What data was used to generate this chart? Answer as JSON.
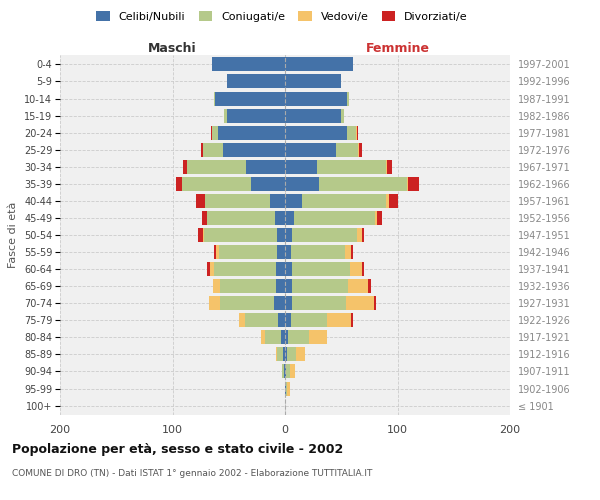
{
  "age_groups": [
    "100+",
    "95-99",
    "90-94",
    "85-89",
    "80-84",
    "75-79",
    "70-74",
    "65-69",
    "60-64",
    "55-59",
    "50-54",
    "45-49",
    "40-44",
    "35-39",
    "30-34",
    "25-29",
    "20-24",
    "15-19",
    "10-14",
    "5-9",
    "0-4"
  ],
  "birth_years": [
    "≤ 1901",
    "1902-1906",
    "1907-1911",
    "1912-1916",
    "1917-1921",
    "1922-1926",
    "1927-1931",
    "1932-1936",
    "1937-1941",
    "1942-1946",
    "1947-1951",
    "1952-1956",
    "1957-1961",
    "1962-1966",
    "1967-1971",
    "1972-1976",
    "1977-1981",
    "1982-1986",
    "1987-1991",
    "1992-1996",
    "1997-2001"
  ],
  "males": {
    "celibe": [
      0,
      0,
      1,
      2,
      4,
      6,
      10,
      8,
      8,
      7,
      7,
      9,
      13,
      30,
      35,
      55,
      60,
      52,
      62,
      52,
      65
    ],
    "coniugato": [
      0,
      0,
      2,
      5,
      14,
      30,
      48,
      50,
      55,
      52,
      65,
      60,
      58,
      62,
      52,
      18,
      5,
      2,
      1,
      0,
      0
    ],
    "vedovo": [
      0,
      0,
      0,
      1,
      3,
      5,
      10,
      6,
      4,
      2,
      1,
      0,
      0,
      0,
      0,
      0,
      0,
      0,
      0,
      0,
      0
    ],
    "divorziato": [
      0,
      0,
      0,
      0,
      0,
      0,
      0,
      0,
      2,
      2,
      4,
      5,
      8,
      5,
      4,
      2,
      1,
      0,
      0,
      0,
      0
    ]
  },
  "females": {
    "nubile": [
      0,
      1,
      1,
      2,
      3,
      5,
      6,
      6,
      6,
      5,
      6,
      8,
      15,
      30,
      28,
      45,
      55,
      50,
      55,
      50,
      60
    ],
    "coniugata": [
      0,
      1,
      3,
      8,
      18,
      32,
      48,
      50,
      52,
      48,
      58,
      72,
      75,
      78,
      62,
      20,
      8,
      2,
      2,
      0,
      0
    ],
    "vedova": [
      0,
      2,
      5,
      8,
      16,
      22,
      25,
      18,
      10,
      6,
      4,
      2,
      2,
      1,
      1,
      1,
      1,
      0,
      0,
      0,
      0
    ],
    "divorziata": [
      0,
      0,
      0,
      0,
      0,
      1,
      2,
      2,
      2,
      1,
      2,
      4,
      8,
      10,
      4,
      2,
      1,
      0,
      0,
      0,
      0
    ]
  },
  "color_celibe": "#4472a8",
  "color_coniugato": "#b5c98a",
  "color_vedovo": "#f5c36a",
  "color_divorziato": "#cc2222",
  "title": "Popolazione per età, sesso e stato civile - 2002",
  "subtitle": "COMUNE DI DRO (TN) - Dati ISTAT 1° gennaio 2002 - Elaborazione TUTTITALIA.IT",
  "label_maschi": "Maschi",
  "label_femmine": "Femmine",
  "ylabel_left": "Fasce di età",
  "xlim": 200,
  "bg_color": "#f0f0f0",
  "grid_color": "#cccccc"
}
